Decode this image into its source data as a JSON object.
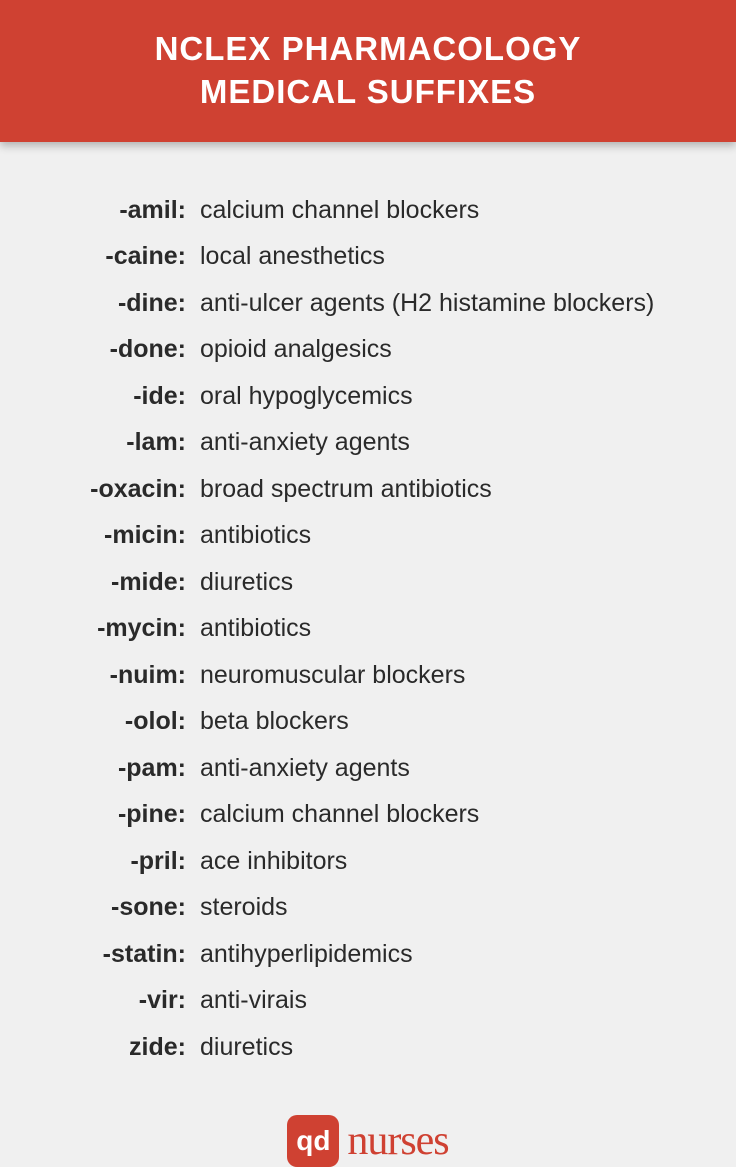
{
  "header": {
    "title_line1": "NCLEX PHARMACOLOGY",
    "title_line2": "MEDICAL SUFFIXES"
  },
  "colors": {
    "header_bg": "#cf4132",
    "header_text": "#ffffff",
    "body_bg": "#f0f0f0",
    "text_color": "#2a2a2a",
    "logo_color": "#cf4132"
  },
  "typography": {
    "header_fontsize": 33,
    "row_fontsize": 25,
    "logo_text_fontsize": 42,
    "logo_badge_fontsize": 28
  },
  "suffixes": [
    {
      "suffix": "-amil:",
      "definition": "calcium channel blockers"
    },
    {
      "suffix": "-caine:",
      "definition": "local anesthetics"
    },
    {
      "suffix": "-dine:",
      "definition": "anti-ulcer agents (H2 histamine blockers)"
    },
    {
      "suffix": "-done:",
      "definition": "opioid analgesics"
    },
    {
      "suffix": "-ide:",
      "definition": "oral hypoglycemics"
    },
    {
      "suffix": "-lam:",
      "definition": "anti-anxiety agents"
    },
    {
      "suffix": "-oxacin:",
      "definition": "broad spectrum antibiotics"
    },
    {
      "suffix": "-micin:",
      "definition": "antibiotics"
    },
    {
      "suffix": "-mide:",
      "definition": "diuretics"
    },
    {
      "suffix": "-mycin:",
      "definition": "antibiotics"
    },
    {
      "suffix": "-nuim:",
      "definition": "neuromuscular blockers"
    },
    {
      "suffix": "-olol:",
      "definition": "beta blockers"
    },
    {
      "suffix": "-pam:",
      "definition": "anti-anxiety agents"
    },
    {
      "suffix": "-pine:",
      "definition": "calcium channel blockers"
    },
    {
      "suffix": "-pril:",
      "definition": "ace inhibitors"
    },
    {
      "suffix": "-sone:",
      "definition": "steroids"
    },
    {
      "suffix": "-statin:",
      "definition": "antihyperlipidemics"
    },
    {
      "suffix": "-vir:",
      "definition": "anti-virais"
    },
    {
      "suffix": "zide:",
      "definition": "diuretics"
    }
  ],
  "footer": {
    "badge_text": "qd",
    "brand_text": "nurses"
  }
}
